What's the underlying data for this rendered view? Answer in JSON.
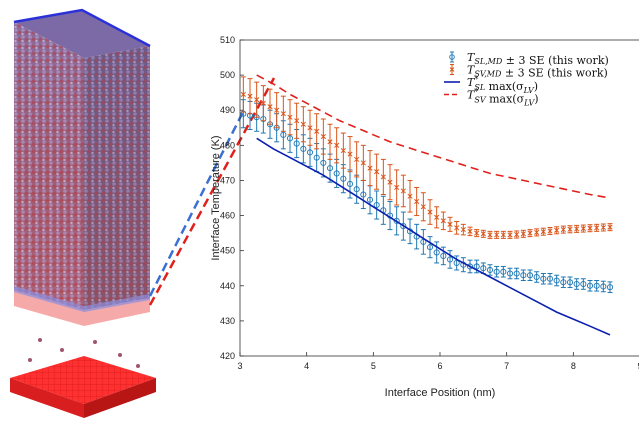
{
  "chart_data": {
    "type": "line",
    "xlabel": "Interface Position (nm)",
    "ylabel": "Interface Temperature (K)",
    "xlim": [
      3,
      9
    ],
    "ylim": [
      420,
      510
    ],
    "x_ticks": [
      "3",
      "4",
      "5",
      "6",
      "7",
      "8",
      "9"
    ],
    "y_ticks": [
      "420",
      "430",
      "440",
      "450",
      "460",
      "470",
      "480",
      "490",
      "500",
      "510"
    ],
    "legend_position": "top-right",
    "colors": {
      "sl_md": "#1f77b4",
      "sv_md": "#d9541a",
      "sl_theory": "#0b20b0",
      "sv_theory": "#e0201b"
    },
    "series": [
      {
        "name": "T_SL,MD ± 3 SE (this work)",
        "legend": {
          "main": "T",
          "sub": "SL,MD",
          "rest": " ± 3 SE (this work)"
        },
        "style": "errorbar-circle",
        "x": [
          3.05,
          3.15,
          3.25,
          3.35,
          3.45,
          3.55,
          3.65,
          3.75,
          3.85,
          3.95,
          4.05,
          4.15,
          4.25,
          4.35,
          4.45,
          4.55,
          4.65,
          4.75,
          4.85,
          4.95,
          5.05,
          5.15,
          5.25,
          5.35,
          5.45,
          5.55,
          5.65,
          5.75,
          5.85,
          5.95,
          6.05,
          6.15,
          6.25,
          6.35,
          6.45,
          6.55,
          6.65,
          6.75,
          6.85,
          6.95,
          7.05,
          7.15,
          7.25,
          7.35,
          7.45,
          7.55,
          7.65,
          7.75,
          7.85,
          7.95,
          8.05,
          8.15,
          8.25,
          8.35,
          8.45,
          8.55
        ],
        "y": [
          489,
          488.5,
          488,
          487.5,
          486,
          485,
          483,
          482,
          480.5,
          479,
          478,
          476.5,
          475,
          473.5,
          472,
          470.5,
          469,
          467.5,
          466,
          464.5,
          463,
          461.5,
          460,
          458.5,
          457,
          455.5,
          454,
          452.5,
          451,
          449.5,
          448.5,
          447.5,
          446.5,
          446,
          445.5,
          445.5,
          445,
          444.5,
          444,
          444,
          443.5,
          443.5,
          443,
          443,
          442.5,
          442,
          442,
          441.5,
          441,
          441,
          440.5,
          440.5,
          440,
          440,
          439.8,
          439.6
        ],
        "err": [
          4,
          4,
          4,
          4,
          4,
          4,
          4,
          4,
          4,
          4,
          4,
          4,
          4,
          4,
          4,
          4,
          4,
          4,
          4,
          4,
          4,
          4,
          4,
          4,
          4,
          3.5,
          3.5,
          3.5,
          3,
          3,
          2.5,
          2.5,
          2,
          2,
          1.8,
          1.8,
          1.5,
          1.5,
          1.5,
          1.5,
          1.5,
          1.5,
          1.5,
          1.5,
          1.5,
          1.5,
          1.5,
          1.5,
          1.5,
          1.5,
          1.5,
          1.5,
          1.5,
          1.5,
          1.5,
          1.5
        ]
      },
      {
        "name": "T_SV,MD ± 3 SE (this work)",
        "legend": {
          "main": "T",
          "sub": "SV,MD",
          "rest": " ± 3 SE (this work)"
        },
        "style": "errorbar-x",
        "x": [
          3.05,
          3.15,
          3.25,
          3.35,
          3.45,
          3.55,
          3.65,
          3.75,
          3.85,
          3.95,
          4.05,
          4.15,
          4.25,
          4.35,
          4.45,
          4.55,
          4.65,
          4.75,
          4.85,
          4.95,
          5.05,
          5.15,
          5.25,
          5.35,
          5.45,
          5.55,
          5.65,
          5.75,
          5.85,
          5.95,
          6.05,
          6.15,
          6.25,
          6.35,
          6.45,
          6.55,
          6.65,
          6.75,
          6.85,
          6.95,
          7.05,
          7.15,
          7.25,
          7.35,
          7.45,
          7.55,
          7.65,
          7.75,
          7.85,
          7.95,
          8.05,
          8.15,
          8.25,
          8.35,
          8.45,
          8.55
        ],
        "y": [
          494.5,
          494,
          493,
          492,
          491,
          490,
          489,
          488,
          487,
          486,
          485,
          484,
          482.5,
          481,
          480,
          478.5,
          477.5,
          476,
          475,
          473.5,
          472.5,
          471,
          469.5,
          468,
          467,
          465.5,
          464,
          462.5,
          461,
          459.5,
          458.5,
          457.5,
          456.5,
          456,
          455.5,
          455,
          454.8,
          454.5,
          454.5,
          454.5,
          454.5,
          454.6,
          454.8,
          455,
          455.2,
          455.4,
          455.6,
          455.8,
          456,
          456.1,
          456.2,
          456.3,
          456.4,
          456.5,
          456.6,
          456.7
        ],
        "err": [
          5,
          5,
          5,
          5,
          5,
          5,
          5,
          5,
          5,
          5,
          5,
          5,
          5,
          5,
          5,
          5,
          5,
          5,
          5,
          5,
          5,
          5,
          5,
          5,
          4.5,
          4.5,
          4,
          4,
          3.5,
          3,
          2.5,
          2,
          1.8,
          1.5,
          1.2,
          1,
          1,
          1,
          1,
          1,
          1,
          1,
          1,
          1,
          1,
          1,
          1,
          1,
          1,
          1,
          1,
          1,
          1,
          1,
          1,
          1
        ]
      },
      {
        "name": "T*_SL max(σ_LV)",
        "legend": {
          "main": "T",
          "sup": "*",
          "sub": "SL",
          "rest": " max(σ",
          "sub2": "LV",
          "tail": ")"
        },
        "style": "solid",
        "x": [
          3.25,
          3.5,
          3.75,
          4.0,
          4.25,
          4.5,
          4.75,
          5.0,
          5.25,
          5.5,
          5.75,
          6.0,
          6.25,
          6.5,
          6.75,
          7.0,
          7.25,
          7.5,
          7.75,
          8.0,
          8.25,
          8.55
        ],
        "y": [
          482,
          479,
          476.5,
          474,
          471.5,
          468.5,
          465.5,
          462.5,
          459.5,
          456.5,
          453.5,
          450.5,
          447.5,
          445,
          442.5,
          440,
          437.5,
          435,
          432.5,
          430.5,
          428.5,
          426
        ]
      },
      {
        "name": "T*_SV max(σ_LV)",
        "legend": {
          "main": "T",
          "sup": "*",
          "sub": "SV",
          "rest": " max(σ",
          "sub2": "LV",
          "tail": ")"
        },
        "style": "dashed",
        "x": [
          3.25,
          3.5,
          3.75,
          4.0,
          4.25,
          4.5,
          4.75,
          5.0,
          5.25,
          5.5,
          5.75,
          6.0,
          6.25,
          6.5,
          6.75,
          7.0,
          7.25,
          7.5,
          7.75,
          8.0,
          8.25,
          8.55
        ],
        "y": [
          500,
          497.5,
          494.5,
          492,
          489.5,
          487,
          485,
          483,
          481,
          479.5,
          478,
          476.5,
          475,
          473.5,
          472,
          471,
          470,
          469,
          468,
          467,
          466,
          465
        ]
      }
    ]
  }
}
